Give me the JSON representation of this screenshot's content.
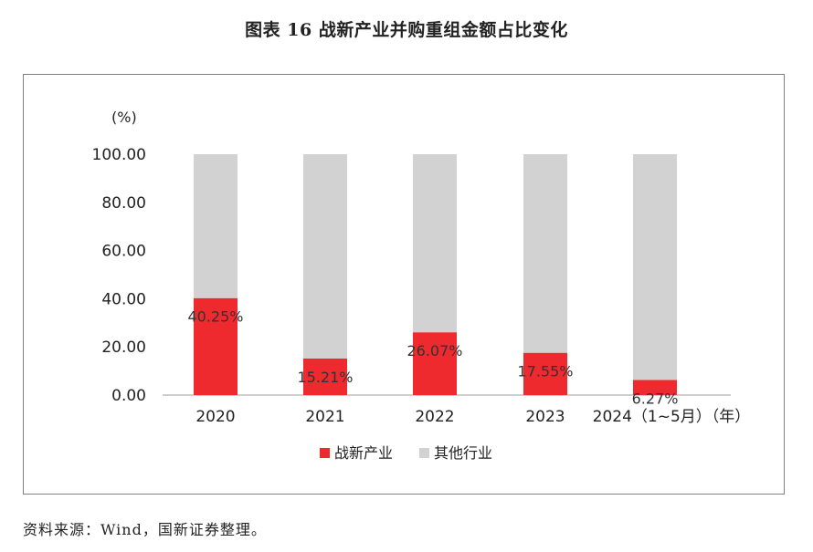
{
  "title": "图表 16  战新产业并购重组金额占比变化",
  "source": "资料来源：Wind，国新证券整理。",
  "chart_data": {
    "type": "bar",
    "stacked": true,
    "unit_label": "(%)",
    "categories": [
      "2020",
      "2021",
      "2022",
      "2023",
      "2024（1~5月）（年）"
    ],
    "series": [
      {
        "name": "战新产业",
        "color": "#ee2a2f",
        "values": [
          40.25,
          15.21,
          26.07,
          17.55,
          6.27
        ],
        "labels": [
          "40.25%",
          "15.21%",
          "26.07%",
          "17.55%",
          "6.27%"
        ]
      },
      {
        "name": "其他行业",
        "color": "#d2d2d2",
        "values": [
          59.75,
          84.79,
          73.93,
          82.45,
          93.73
        ]
      }
    ],
    "yticks": [
      "0.00",
      "20.00",
      "40.00",
      "60.00",
      "80.00",
      "100.00"
    ],
    "ylim": [
      0,
      100
    ],
    "grid": false,
    "legend_position": "bottom-center"
  }
}
